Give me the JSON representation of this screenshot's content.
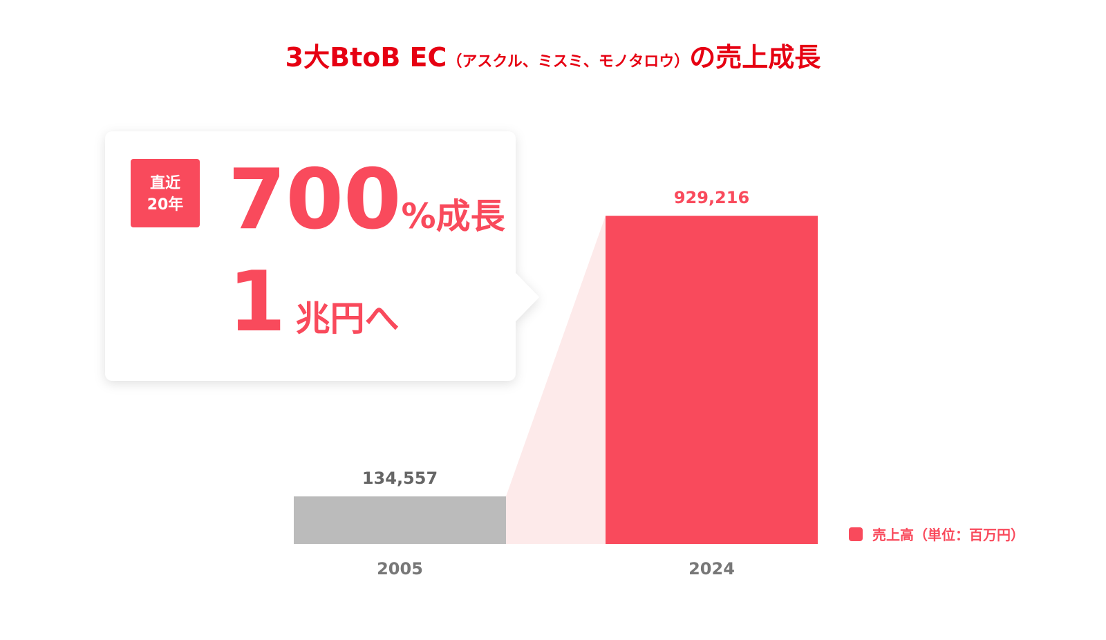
{
  "chart_data": {
    "type": "bar",
    "title": "3大BtoB EC",
    "title_note": "（アスクル、ミスミ、モノタロウ）",
    "title_suffix": "の売上成長",
    "callout": {
      "badge": [
        "直近",
        "20年"
      ],
      "growth_number": "700",
      "growth_text": "%成長",
      "target_number": "1",
      "target_text": "兆円へ"
    },
    "categories": [
      "2005",
      "2024"
    ],
    "series": [
      {
        "name": "売上高（単位：百万円）",
        "color": "#f94a5c",
        "bar_colors": [
          "#bbbbbb",
          "#f94a5c"
        ],
        "values": [
          134557,
          929216
        ],
        "value_labels": [
          "134,557",
          "929,216"
        ]
      }
    ],
    "ylim": [
      0,
      1000000
    ]
  }
}
